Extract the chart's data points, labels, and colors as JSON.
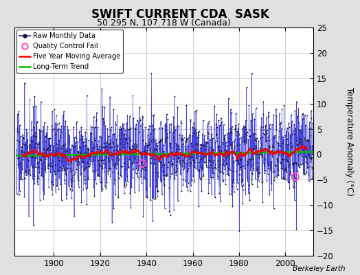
{
  "title": "SWIFT CURRENT CDA  SASK",
  "subtitle": "50.295 N, 107.718 W (Canada)",
  "ylabel": "Temperature Anomaly (°C)",
  "credit": "Berkeley Earth",
  "year_start": 1884,
  "year_end": 2011,
  "ylim": [
    -20,
    25
  ],
  "yticks": [
    -20,
    -15,
    -10,
    -5,
    0,
    5,
    10,
    15,
    20,
    25
  ],
  "xticks": [
    1900,
    1920,
    1940,
    1960,
    1980,
    2000
  ],
  "background_color": "#e0e0e0",
  "plot_bg_color": "#ffffff",
  "grid_color": "#c8c8c8",
  "raw_line_color": "#4444dd",
  "raw_dot_color": "#111111",
  "moving_avg_color": "#ee0000",
  "trend_color": "#00bb00",
  "qc_fail_color": "#ff44bb",
  "seed": 17
}
